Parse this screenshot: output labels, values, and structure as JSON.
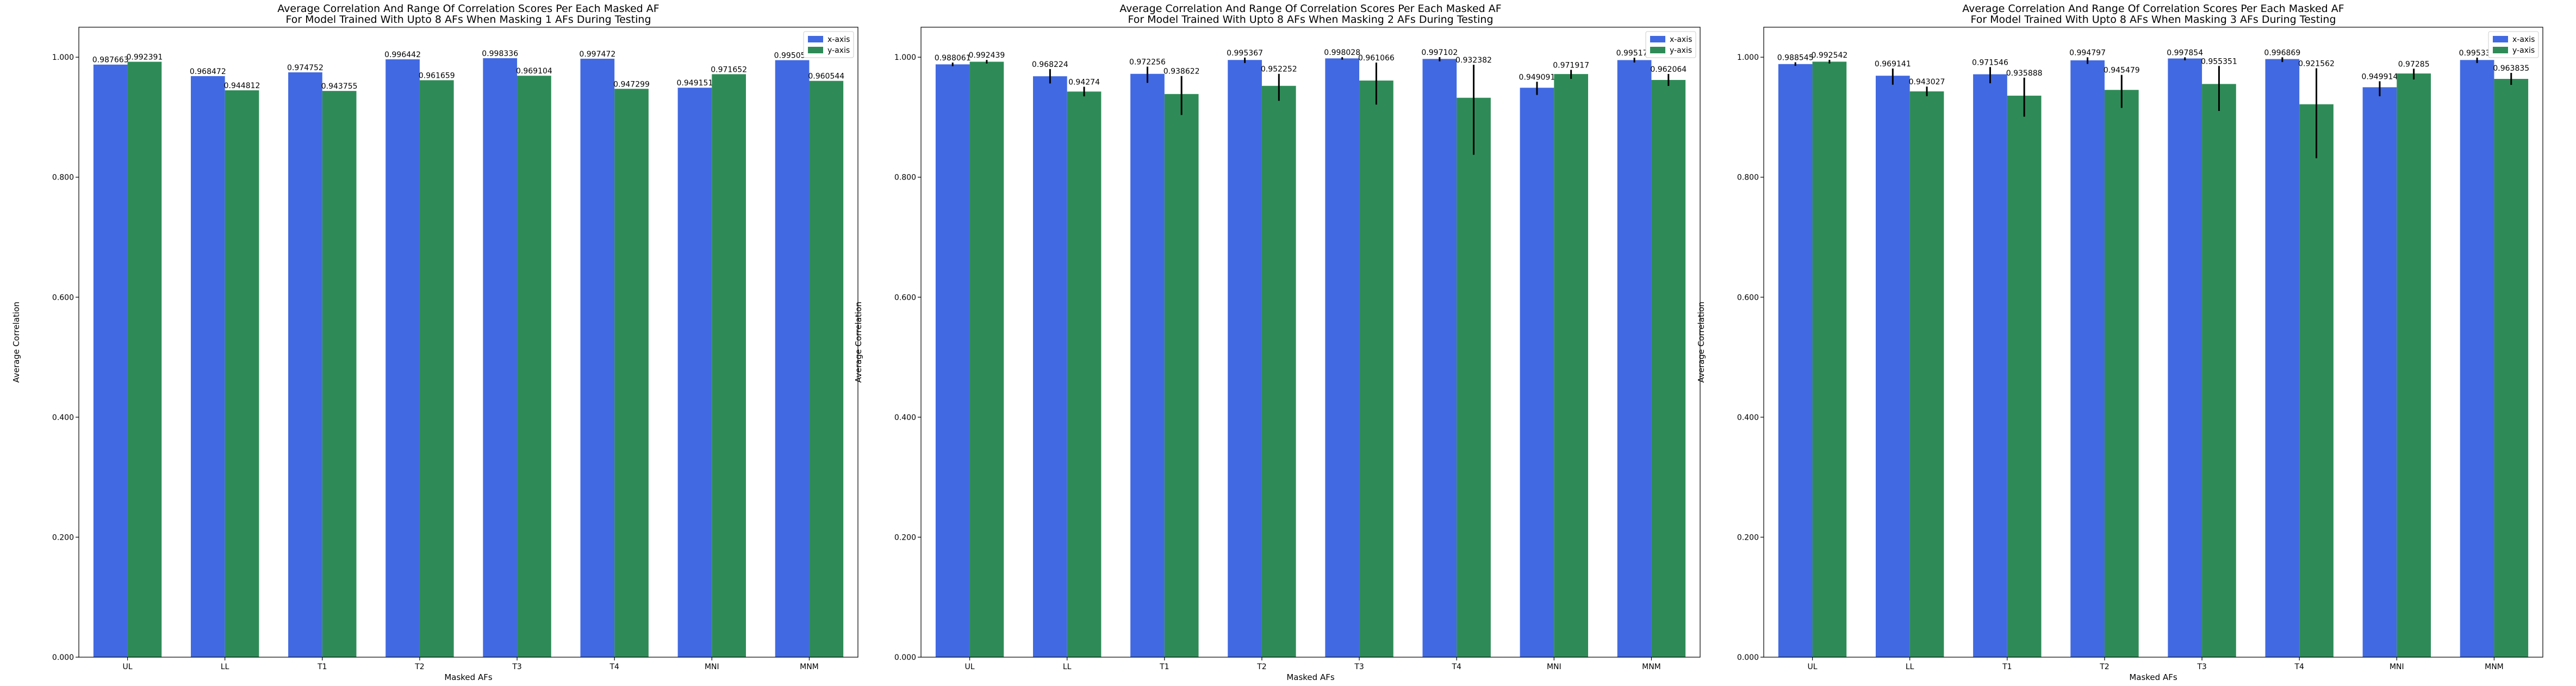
{
  "chart_data": [
    {
      "type": "bar",
      "title": "Average Correlation And Range Of Correlation Scores Per Each Masked AF",
      "subtitle": "For Model Trained With Upto 8 AFs When Masking 1 AFs During Testing",
      "xlabel": "Masked AFs",
      "ylabel": "Average Correlation",
      "ylim": [
        0,
        1.05
      ],
      "yticks": [
        "0.000",
        "0.200",
        "0.400",
        "0.600",
        "0.800",
        "1.000"
      ],
      "legend_position": "top-right",
      "categories": [
        "UL",
        "LL",
        "T1",
        "T2",
        "T3",
        "T4",
        "MNI",
        "MNM"
      ],
      "series": [
        {
          "name": "x-axis",
          "color": "#4169e1",
          "values": [
            0.987663,
            0.968472,
            0.974752,
            0.996442,
            0.998336,
            0.997472,
            0.949151,
            0.995052
          ],
          "labels": [
            "0.987663",
            "0.968472",
            "0.974752",
            "0.996442",
            "0.998336",
            "0.997472",
            "0.949151",
            "0.995052"
          ],
          "err_low": [
            0,
            0,
            0,
            0,
            0,
            0,
            0,
            0
          ],
          "err_high": [
            0,
            0,
            0,
            0,
            0,
            0,
            0,
            0
          ]
        },
        {
          "name": "y-axis",
          "color": "#2e8b57",
          "values": [
            0.992391,
            0.944812,
            0.943755,
            0.961659,
            0.969104,
            0.947299,
            0.971652,
            0.960544
          ],
          "labels": [
            "0.992391",
            "0.944812",
            "0.943755",
            "0.961659",
            "0.969104",
            "0.947299",
            "0.971652",
            "0.960544"
          ],
          "err_low": [
            0,
            0,
            0,
            0,
            0,
            0,
            0,
            0
          ],
          "err_high": [
            0,
            0,
            0,
            0,
            0,
            0,
            0,
            0
          ]
        }
      ]
    },
    {
      "type": "bar",
      "title": "Average Correlation And Range Of Correlation Scores Per Each Masked AF",
      "subtitle": "For Model Trained With Upto 8 AFs When Masking 2 AFs During Testing",
      "xlabel": "Masked AFs",
      "ylabel": "Average Correlation",
      "ylim": [
        0,
        1.05
      ],
      "yticks": [
        "0.000",
        "0.200",
        "0.400",
        "0.600",
        "0.800",
        "1.000"
      ],
      "legend_position": "top-right",
      "categories": [
        "UL",
        "LL",
        "T1",
        "T2",
        "T3",
        "T4",
        "MNI",
        "MNM"
      ],
      "series": [
        {
          "name": "x-axis",
          "color": "#4169e1",
          "values": [
            0.988061,
            0.968224,
            0.972256,
            0.995367,
            0.998028,
            0.997102,
            0.949091,
            0.995171
          ],
          "labels": [
            "0.988061",
            "0.968224",
            "0.972256",
            "0.995367",
            "0.998028",
            "0.997102",
            "0.949091",
            "0.995171"
          ],
          "err_low": [
            0.003,
            0.012,
            0.015,
            0.005,
            0.002,
            0.004,
            0.012,
            0.004
          ],
          "err_high": [
            0.003,
            0.012,
            0.012,
            0.004,
            0.002,
            0.003,
            0.01,
            0.004
          ]
        },
        {
          "name": "y-axis",
          "color": "#2e8b57",
          "values": [
            0.992439,
            0.94274,
            0.938622,
            0.952252,
            0.961066,
            0.932382,
            0.971917,
            0.962064
          ],
          "labels": [
            "0.992439",
            "0.94274",
            "0.938622",
            "0.952252",
            "0.961066",
            "0.932382",
            "0.971917",
            "0.962064"
          ],
          "err_low": [
            0.003,
            0.008,
            0.035,
            0.025,
            0.04,
            0.095,
            0.008,
            0.01
          ],
          "err_high": [
            0.003,
            0.008,
            0.03,
            0.02,
            0.03,
            0.055,
            0.007,
            0.01
          ]
        }
      ]
    },
    {
      "type": "bar",
      "title": "Average Correlation And Range Of Correlation Scores Per Each Masked AF",
      "subtitle": "For Model Trained With Upto 8 AFs When Masking 3 AFs During Testing",
      "xlabel": "Masked AFs",
      "ylabel": "Average Correlation",
      "ylim": [
        0,
        1.05
      ],
      "yticks": [
        "0.000",
        "0.200",
        "0.400",
        "0.600",
        "0.800",
        "1.000"
      ],
      "legend_position": "top-right",
      "categories": [
        "UL",
        "LL",
        "T1",
        "T2",
        "T3",
        "T4",
        "MNI",
        "MNM"
      ],
      "series": [
        {
          "name": "x-axis",
          "color": "#4169e1",
          "values": [
            0.988545,
            0.969141,
            0.971546,
            0.994797,
            0.997854,
            0.996869,
            0.949914,
            0.995335
          ],
          "labels": [
            "0.988545",
            "0.969141",
            "0.971546",
            "0.994797",
            "0.997854",
            "0.996869",
            "0.949914",
            "0.995335"
          ],
          "err_low": [
            0.003,
            0.015,
            0.015,
            0.006,
            0.003,
            0.005,
            0.015,
            0.005
          ],
          "err_high": [
            0.003,
            0.012,
            0.012,
            0.005,
            0.002,
            0.003,
            0.01,
            0.004
          ]
        },
        {
          "name": "y-axis",
          "color": "#2e8b57",
          "values": [
            0.992542,
            0.943027,
            0.935888,
            0.945479,
            0.955351,
            0.921562,
            0.97285,
            0.963835
          ],
          "labels": [
            "0.992542",
            "0.943027",
            "0.935888",
            "0.945479",
            "0.955351",
            "0.921562",
            "0.97285",
            "0.963835"
          ],
          "err_low": [
            0.003,
            0.008,
            0.035,
            0.03,
            0.045,
            0.09,
            0.01,
            0.01
          ],
          "err_high": [
            0.003,
            0.008,
            0.03,
            0.025,
            0.03,
            0.06,
            0.008,
            0.01
          ]
        }
      ]
    }
  ]
}
